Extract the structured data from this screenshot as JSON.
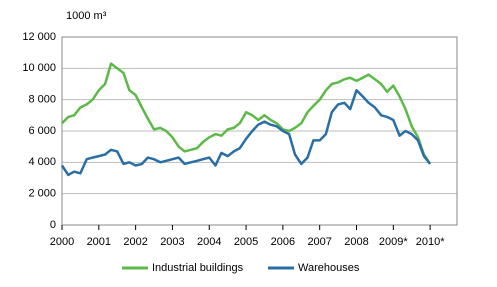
{
  "chart_data": {
    "type": "line",
    "y_axis_label": "1000 m³",
    "x": [
      2000,
      2000.17,
      2000.33,
      2000.5,
      2000.67,
      2000.83,
      2001,
      2001.17,
      2001.33,
      2001.5,
      2001.67,
      2001.83,
      2002,
      2002.17,
      2002.33,
      2002.5,
      2002.67,
      2002.83,
      2003,
      2003.17,
      2003.33,
      2003.5,
      2003.67,
      2003.83,
      2004,
      2004.17,
      2004.33,
      2004.5,
      2004.67,
      2004.83,
      2005,
      2005.17,
      2005.33,
      2005.5,
      2005.67,
      2005.83,
      2006,
      2006.17,
      2006.33,
      2006.5,
      2006.67,
      2006.83,
      2007,
      2007.17,
      2007.33,
      2007.5,
      2007.67,
      2007.83,
      2008,
      2008.17,
      2008.33,
      2008.5,
      2008.67,
      2008.83,
      2009,
      2009.17,
      2009.33,
      2009.5,
      2009.67,
      2009.83,
      2010
    ],
    "series": [
      {
        "name": "Industrial buildings",
        "color": "#5cb94a",
        "values": [
          6500,
          6900,
          7000,
          7500,
          7700,
          8000,
          8600,
          9000,
          10300,
          10000,
          9700,
          8600,
          8300,
          7500,
          6800,
          6100,
          6200,
          6000,
          5600,
          5000,
          4700,
          4800,
          4900,
          5300,
          5600,
          5800,
          5700,
          6100,
          6200,
          6500,
          7200,
          7000,
          6700,
          7000,
          6700,
          6500,
          6100,
          6000,
          6200,
          6500,
          7200,
          7600,
          8000,
          8600,
          9000,
          9100,
          9300,
          9400,
          9200,
          9400,
          9600,
          9300,
          9000,
          8500,
          8900,
          8200,
          7400,
          6300,
          5600,
          4500,
          3900
        ]
      },
      {
        "name": "Warehouses",
        "color": "#2a6ea6",
        "values": [
          3800,
          3200,
          3400,
          3300,
          4200,
          4300,
          4400,
          4500,
          4800,
          4700,
          3900,
          4000,
          3800,
          3900,
          4300,
          4200,
          4000,
          4100,
          4200,
          4300,
          3900,
          4000,
          4100,
          4200,
          4300,
          3800,
          4600,
          4400,
          4700,
          4900,
          5500,
          6000,
          6400,
          6600,
          6400,
          6300,
          6000,
          5800,
          4500,
          3900,
          4300,
          5400,
          5400,
          5800,
          7200,
          7700,
          7800,
          7400,
          8600,
          8200,
          7800,
          7500,
          7000,
          6900,
          6700,
          5700,
          6000,
          5800,
          5400,
          4400,
          3900
        ]
      }
    ],
    "xlim": [
      2000,
      2010.73
    ],
    "xticks": [
      2000,
      2001,
      2002,
      2003,
      2004,
      2005,
      2006,
      2007,
      2008,
      {
        "value": 2009,
        "label": "2009*"
      },
      {
        "value": 2010,
        "label": "2010*"
      }
    ],
    "ylim": [
      0,
      12000
    ],
    "yticks": [
      0,
      {
        "value": 2000,
        "label": "2 000"
      },
      {
        "value": 4000,
        "label": "4 000"
      },
      {
        "value": 6000,
        "label": "6 000"
      },
      {
        "value": 8000,
        "label": "8 000"
      },
      {
        "value": 10000,
        "label": "10 000"
      },
      {
        "value": 12000,
        "label": "12 000"
      }
    ],
    "grid": true,
    "legend": "bottom"
  }
}
